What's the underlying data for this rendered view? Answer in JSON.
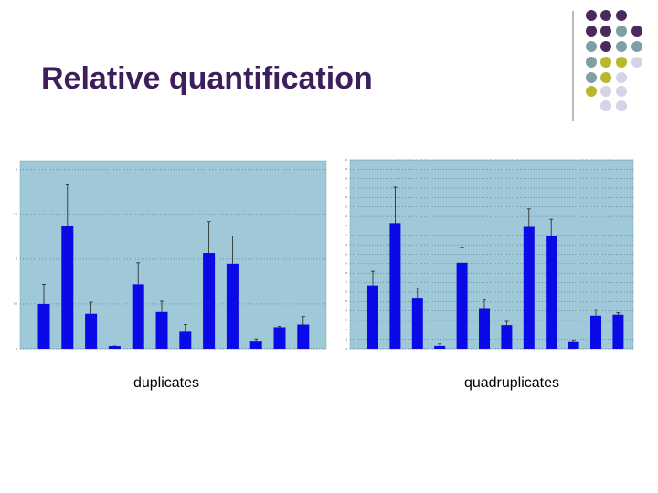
{
  "title": "Relative quantification",
  "chart_data": [
    {
      "type": "bar",
      "caption": "duplicates",
      "color": "#0a0ae6",
      "grid": true,
      "categories": [
        null,
        null,
        null,
        null,
        null,
        null,
        null,
        null,
        null,
        null,
        null,
        null
      ],
      "values": [
        0.5,
        1.37,
        0.39,
        0.03,
        0.72,
        0.41,
        0.19,
        1.07,
        0.95,
        0.08,
        0.24,
        0.27
      ],
      "errors": [
        0.22,
        0.46,
        0.13,
        0,
        0.24,
        0.12,
        0.08,
        0.35,
        0.31,
        0.03,
        0.01,
        0.09
      ],
      "ylim": [
        0,
        2.1
      ],
      "yticks": [
        0,
        0.5,
        1,
        1.5,
        2
      ]
    },
    {
      "type": "bar",
      "caption": "quadruplicates",
      "color": "#0a0ae6",
      "grid": true,
      "categories": [
        null,
        null,
        null,
        null,
        null,
        null,
        null,
        null,
        null,
        null,
        null,
        null
      ],
      "values": [
        6.7,
        13.3,
        5.4,
        0.3,
        9.1,
        4.3,
        2.5,
        12.9,
        11.9,
        0.7,
        3.5,
        3.6
      ],
      "errors": [
        1.5,
        3.8,
        1.0,
        0.2,
        1.6,
        0.9,
        0.4,
        1.9,
        1.8,
        0.2,
        0.7,
        0.2
      ],
      "ylim": [
        0,
        20
      ],
      "yticks": [
        0,
        1,
        2,
        3,
        4,
        5,
        6,
        7,
        8,
        9,
        10,
        11,
        12,
        13,
        14,
        15,
        16,
        17,
        18,
        19,
        20
      ]
    }
  ]
}
